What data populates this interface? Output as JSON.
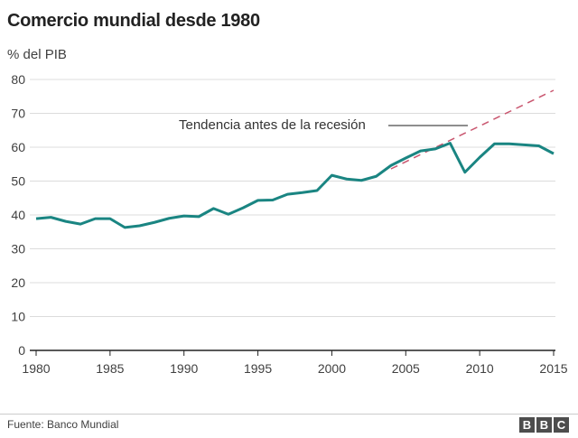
{
  "chart_data": {
    "type": "line",
    "title": "Comercio mundial desde 1980",
    "ylabel": "% del PIB",
    "xlabel": "",
    "xlim": [
      1980,
      2015
    ],
    "ylim": [
      0,
      80
    ],
    "yticks": [
      0,
      10,
      20,
      30,
      40,
      50,
      60,
      70,
      80
    ],
    "xticks": [
      1980,
      1985,
      1990,
      1995,
      2000,
      2005,
      2010,
      2015
    ],
    "grid": true,
    "series": [
      {
        "color": "#1a8582",
        "x": [
          1980,
          1981,
          1982,
          1983,
          1984,
          1985,
          1986,
          1987,
          1988,
          1989,
          1990,
          1991,
          1992,
          1993,
          1994,
          1995,
          1996,
          1997,
          1998,
          1999,
          2000,
          2001,
          2002,
          2003,
          2004,
          2005,
          2006,
          2007,
          2008,
          2009,
          2010,
          2011,
          2012,
          2013,
          2014,
          2015
        ],
        "values": [
          38.9,
          39.3,
          38.1,
          37.3,
          38.9,
          38.9,
          36.3,
          36.8,
          37.8,
          39.0,
          39.7,
          39.5,
          41.9,
          40.2,
          42.1,
          44.3,
          44.4,
          46.1,
          46.6,
          47.2,
          51.7,
          50.6,
          50.2,
          51.4,
          54.6,
          56.8,
          58.9,
          59.5,
          61.2,
          52.6,
          57.0,
          61.0,
          61.0,
          60.7,
          60.4,
          58.1
        ]
      },
      {
        "name": "Tendencia antes de la recesión",
        "style": "dashed",
        "color": "#c9566f",
        "x": [
          2004,
          2015
        ],
        "values": [
          53.6,
          76.8
        ]
      }
    ],
    "annotation": "Tendencia antes de la recesión"
  },
  "footer": {
    "source": "Fuente: Banco Mundial",
    "logo": [
      "B",
      "B",
      "C"
    ]
  }
}
